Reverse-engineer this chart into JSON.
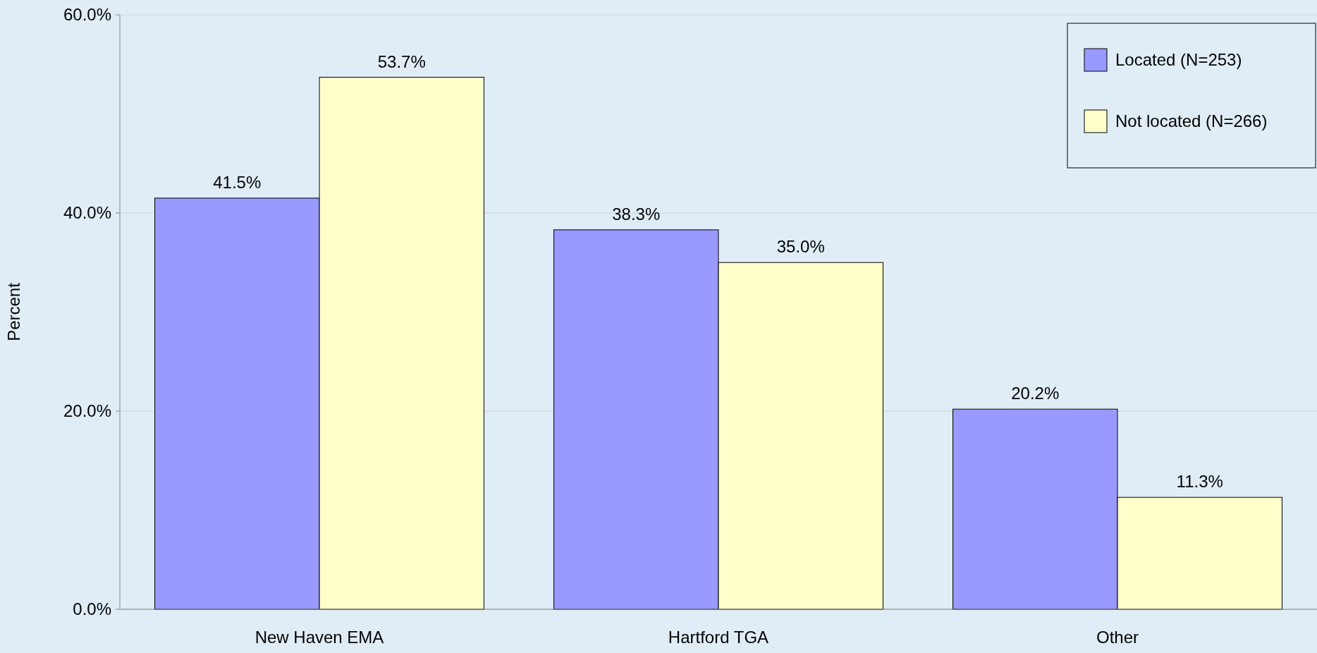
{
  "chart_data": {
    "type": "bar",
    "ylabel": "Percent",
    "categories": [
      "New Haven EMA",
      "Hartford TGA",
      "Other"
    ],
    "series": [
      {
        "name": "Located (N=253)",
        "color": "#9999ff",
        "values": [
          41.5,
          38.3,
          20.2
        ],
        "value_labels": [
          "41.5%",
          "38.3%",
          "20.2%"
        ]
      },
      {
        "name": "Not located (N=266)",
        "color": "#ffffcc",
        "values": [
          53.7,
          35.0,
          11.3
        ],
        "value_labels": [
          "53.7%",
          "35.0%",
          "11.3%"
        ]
      }
    ],
    "ylim": [
      0,
      60
    ],
    "yticks": [
      {
        "value": 0,
        "label": "0.0%"
      },
      {
        "value": 20,
        "label": "20.0%"
      },
      {
        "value": 40,
        "label": "40.0%"
      },
      {
        "value": 60,
        "label": "60.0%"
      }
    ],
    "grid": "y",
    "legend": "top right"
  }
}
